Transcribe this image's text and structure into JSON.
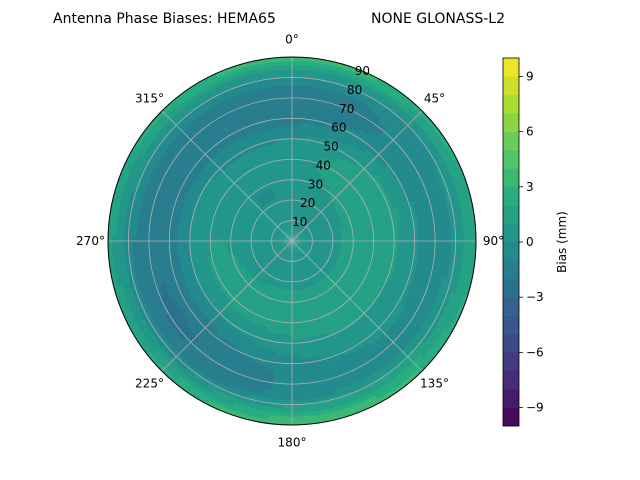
{
  "title": {
    "left": "Antenna Phase Biases: HEMA65",
    "right": "NONE GLONASS-L2"
  },
  "chart_data": {
    "type": "polar-contour",
    "azimuth_labels": [
      "0°",
      "45°",
      "90°",
      "135°",
      "180°",
      "225°",
      "270°",
      "315°"
    ],
    "radial_ticks": [
      10,
      20,
      30,
      40,
      50,
      60,
      70,
      80,
      90
    ],
    "radial_range": [
      0,
      90
    ],
    "colorbar": {
      "label": "Bias (mm)",
      "range": [
        -10,
        10
      ],
      "levels": [
        -10,
        -9,
        -8,
        -7,
        -6,
        -5,
        -4,
        -3,
        -2,
        -1,
        0,
        1,
        2,
        3,
        4,
        5,
        6,
        7,
        8,
        9,
        10
      ],
      "tick_values": [
        -9,
        -6,
        -3,
        0,
        3,
        6,
        9
      ],
      "tick_labels": [
        "−9",
        "−6",
        "−3",
        "0",
        "3",
        "6",
        "9"
      ],
      "colormap": "viridis"
    },
    "bias_field_description": "Bias values between about -3 and +5 mm; center near 0, blue regions (~-2) at azimuth ~0° mid-radius and ~225°, green (~+1) inner band, yellow-green (~+4) at outer edge.",
    "grid": true
  }
}
